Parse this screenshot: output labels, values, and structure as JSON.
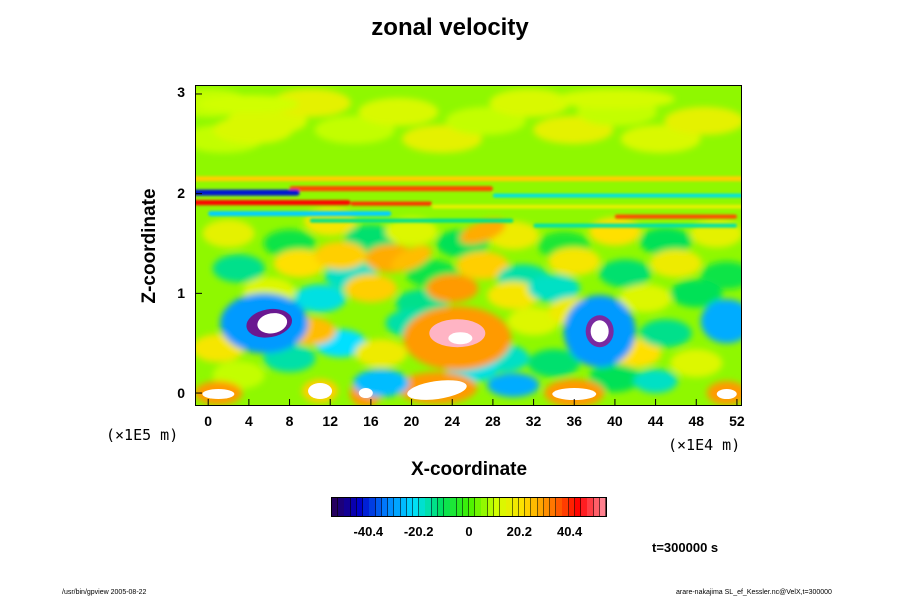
{
  "chart_data": {
    "type": "heatmap",
    "title": "zonal velocity",
    "xlabel": "X-coordinate",
    "ylabel": "Z-coordinate",
    "x_scale_note": "(×1E4 m)",
    "y_scale_note": "(×1E5 m)",
    "x_ticks": [
      "0",
      "4",
      "8",
      "12",
      "16",
      "20",
      "24",
      "28",
      "32",
      "36",
      "40",
      "44",
      "48",
      "52"
    ],
    "x_tick_values": [
      0,
      4,
      8,
      12,
      16,
      20,
      24,
      28,
      32,
      36,
      40,
      44,
      48,
      52
    ],
    "y_ticks": [
      "0",
      "1",
      "2",
      "3"
    ],
    "y_tick_values": [
      0,
      1,
      2,
      3
    ],
    "xlim": [
      -1.2,
      52.4
    ],
    "ylim": [
      -0.12,
      3.08
    ],
    "colorbar": {
      "ticks": [
        "-40.4",
        "-20.2",
        "0",
        "20.2",
        "40.4"
      ],
      "tick_values": [
        -40.4,
        -20.2,
        0,
        20.2,
        40.4
      ],
      "range": [
        -55,
        55
      ],
      "colors": [
        "#2a0050",
        "#0000c8",
        "#0080ff",
        "#00e0ff",
        "#00e060",
        "#40f000",
        "#d0ff00",
        "#ffe000",
        "#ff8000",
        "#ff0000",
        "#ff90a0"
      ]
    },
    "background_value": 6,
    "features": [
      {
        "x": 5.5,
        "z": 0.7,
        "value": -50,
        "note": "strong negative core with white saturated center"
      },
      {
        "x": 38.5,
        "z": 0.62,
        "value": -45,
        "note": "strong negative core with white center"
      },
      {
        "x": 51,
        "z": 0.72,
        "value": -35
      },
      {
        "x": 24.5,
        "z": 0.55,
        "value": 48,
        "note": "strong positive core with white center"
      },
      {
        "x": 22.5,
        "z": 0.05,
        "value": 55,
        "note": "white saturated region at bottom"
      },
      {
        "x": 11,
        "z": 0.02,
        "value": 55
      },
      {
        "x": 15.5,
        "z": 0.0,
        "value": 52
      },
      {
        "x": 36,
        "z": 0.0,
        "value": 52
      },
      {
        "x": 1,
        "z": 0.0,
        "value": 50
      },
      {
        "x": 51,
        "z": 0.0,
        "value": 48
      },
      {
        "x": 27,
        "z": 1.62,
        "value": 40
      },
      {
        "x": 20,
        "z": 1.35,
        "value": 30
      },
      {
        "x": 6,
        "z": 2.02,
        "value": -40,
        "note": "thin blue band"
      },
      {
        "x": 18,
        "z": 1.9,
        "value": 40,
        "note": "thin red band"
      }
    ]
  },
  "footer": {
    "left": "/usr/bin/gpview 2005-08-22",
    "right": "arare-nakajima SL_ef_Kessler.nc@VelX,t=300000"
  },
  "time_label": "t=300000 s"
}
